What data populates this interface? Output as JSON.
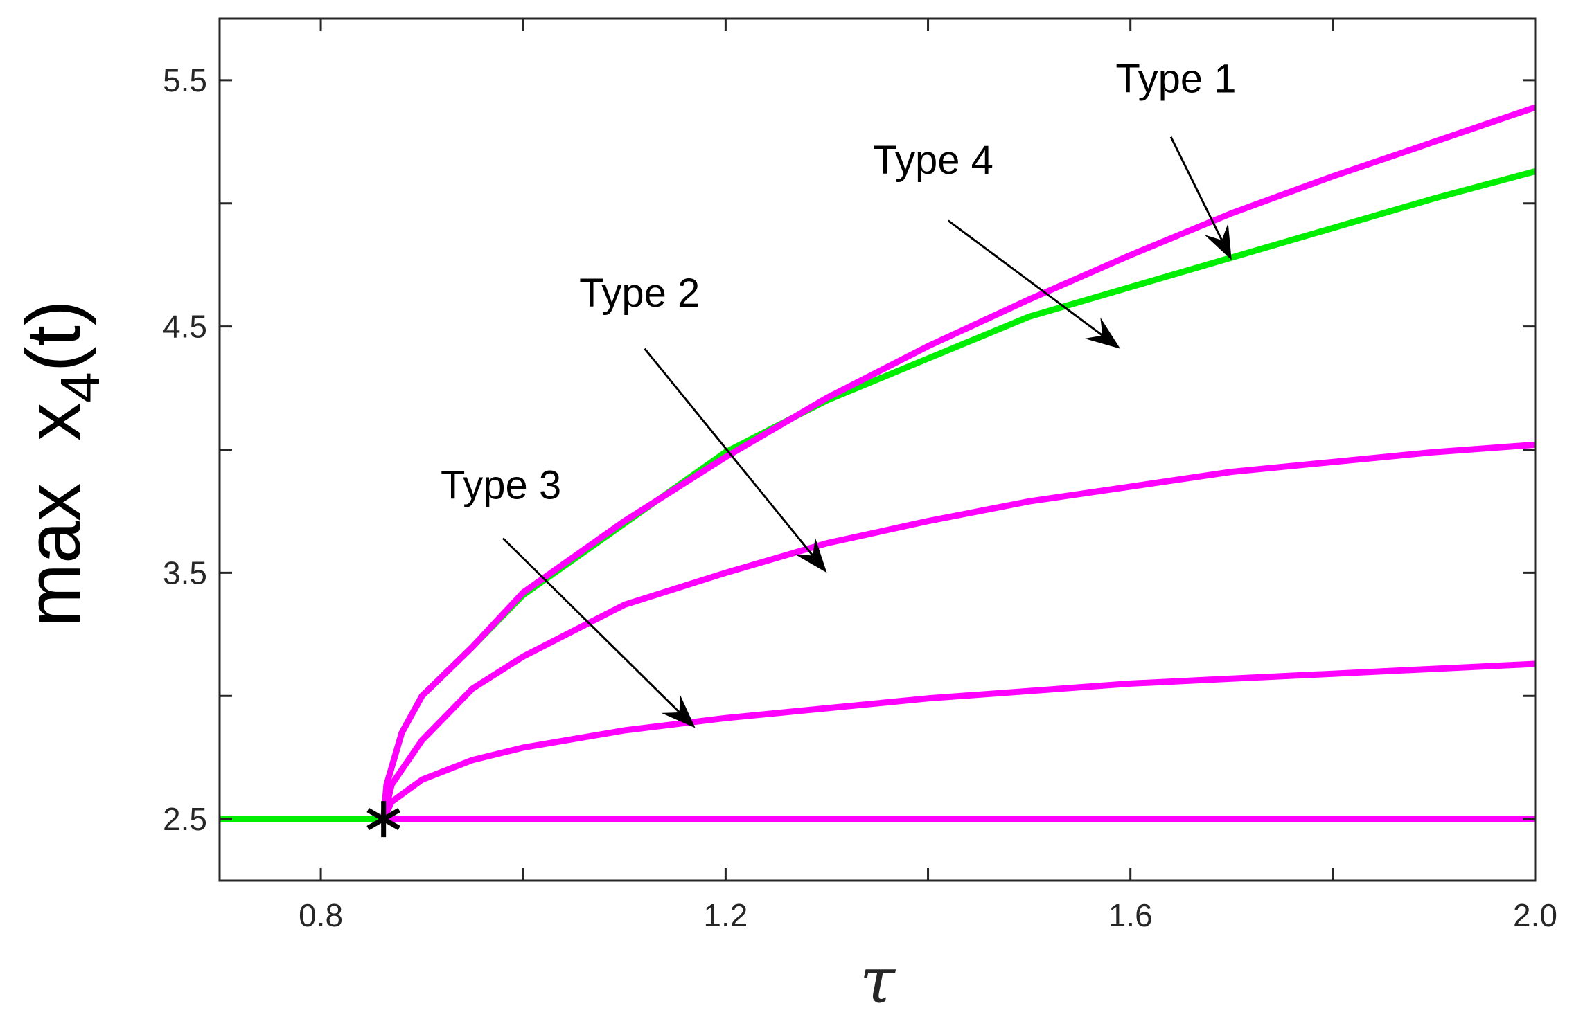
{
  "chart_data": {
    "type": "line",
    "title": "",
    "xlabel": "τ",
    "ylabel": {
      "main": "max  x",
      "subscript": "4",
      "suffix": "(t)"
    },
    "xlim": [
      0.7,
      2.0
    ],
    "ylim": [
      2.25,
      5.75
    ],
    "xticks": [
      0.8,
      1.0,
      1.2,
      1.4,
      1.6,
      1.8,
      2.0
    ],
    "xtick_labels": [
      "0.8",
      "",
      "1.2",
      "",
      "1.6",
      "",
      "2.0"
    ],
    "yticks": [
      2.5,
      3.0,
      3.5,
      4.0,
      4.5,
      5.0,
      5.5
    ],
    "ytick_labels": [
      "2.5",
      "",
      "3.5",
      "",
      "4.5",
      "",
      "5.5"
    ],
    "grid": false,
    "legend": "none",
    "bifurcation_point": {
      "x": 0.862,
      "y": 2.5,
      "marker": "asterisk",
      "color": "#000000"
    },
    "series": [
      {
        "color": "#00ee00",
        "x": [
          0.7,
          0.862,
          0.865,
          0.88,
          0.9,
          0.95,
          1.0,
          1.1,
          1.2,
          1.3,
          1.4,
          1.5,
          1.6,
          1.7,
          1.8,
          1.9,
          2.0
        ],
        "y": [
          2.5,
          2.5,
          2.64,
          2.85,
          3.0,
          3.2,
          3.41,
          3.7,
          3.99,
          4.2,
          4.37,
          4.54,
          4.66,
          4.78,
          4.9,
          5.02,
          5.13
        ]
      },
      {
        "color": "#ff00ff",
        "x": [
          0.862,
          0.865,
          0.88,
          0.9,
          0.95,
          1.0,
          1.1,
          1.2,
          1.3,
          1.4,
          1.5,
          1.6,
          1.7,
          1.8,
          1.9,
          2.0
        ],
        "y": [
          2.5,
          2.64,
          2.85,
          3.0,
          3.2,
          3.42,
          3.71,
          3.97,
          4.21,
          4.42,
          4.61,
          4.79,
          4.96,
          5.11,
          5.25,
          5.39
        ]
      },
      {
        "color": "#ff00ff",
        "x": [
          0.862,
          0.87,
          0.9,
          0.95,
          1.0,
          1.1,
          1.2,
          1.3,
          1.4,
          1.5,
          1.6,
          1.7,
          1.8,
          1.9,
          2.0
        ],
        "y": [
          2.5,
          2.64,
          2.82,
          3.03,
          3.16,
          3.37,
          3.5,
          3.62,
          3.71,
          3.79,
          3.85,
          3.91,
          3.95,
          3.99,
          4.02
        ]
      },
      {
        "color": "#ff00ff",
        "x": [
          0.862,
          0.87,
          0.9,
          0.95,
          1.0,
          1.1,
          1.2,
          1.3,
          1.4,
          1.5,
          1.6,
          1.7,
          1.8,
          1.9,
          2.0
        ],
        "y": [
          2.5,
          2.57,
          2.66,
          2.74,
          2.79,
          2.86,
          2.91,
          2.95,
          2.99,
          3.02,
          3.05,
          3.07,
          3.09,
          3.11,
          3.13
        ]
      },
      {
        "color": "#ff00ff",
        "x": [
          0.862,
          2.0
        ],
        "y": [
          2.5,
          2.5
        ]
      }
    ],
    "annotations": [
      {
        "text": "Type 1",
        "text_at": [
          1.645,
          5.45
        ],
        "arrow_from": [
          1.64,
          5.27
        ],
        "arrow_to": [
          1.7,
          4.77
        ]
      },
      {
        "text": "Type 4",
        "text_at": [
          1.405,
          5.12
        ],
        "arrow_from": [
          1.42,
          4.93
        ],
        "arrow_to": [
          1.59,
          4.41
        ]
      },
      {
        "text": "Type 2",
        "text_at": [
          1.115,
          4.58
        ],
        "arrow_from": [
          1.12,
          4.41
        ],
        "arrow_to": [
          1.3,
          3.5
        ]
      },
      {
        "text": "Type 3",
        "text_at": [
          0.978,
          3.8
        ],
        "arrow_from": [
          0.98,
          3.64
        ],
        "arrow_to": [
          1.17,
          2.87
        ]
      }
    ]
  }
}
